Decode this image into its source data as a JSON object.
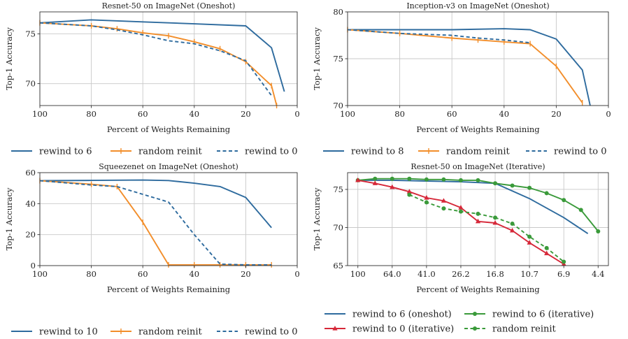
{
  "colors": {
    "blue": "#2e6b9e",
    "orange": "#f28e2b",
    "green": "#3a9a3a",
    "red": "#d62839",
    "grid": "#c8c8c8"
  },
  "chart_data": [
    {
      "type": "line",
      "title": "Resnet-50 on ImageNet (Oneshot)",
      "xlabel": "Percent of Weights Remaining",
      "ylabel": "Top-1 Accuracy",
      "xlim": [
        100,
        0
      ],
      "ylim": [
        67.8,
        77.2
      ],
      "xticks": [
        100,
        80,
        60,
        40,
        20,
        0
      ],
      "yticks": [
        70,
        75
      ],
      "legend": "below",
      "series": [
        {
          "name": "rewind to 6",
          "color": "blue",
          "style": "solid",
          "x": [
            100,
            80,
            60,
            40,
            20,
            10,
            5
          ],
          "y": [
            76.1,
            76.4,
            76.2,
            76.0,
            75.8,
            73.6,
            69.2
          ]
        },
        {
          "name": "random reinit",
          "color": "orange",
          "style": "solid",
          "marker": "tick",
          "x": [
            100,
            80,
            70,
            60,
            50,
            40,
            30,
            20,
            10,
            8
          ],
          "y": [
            76.1,
            75.8,
            75.5,
            75.1,
            74.8,
            74.2,
            73.5,
            72.2,
            69.8,
            67.8
          ]
        },
        {
          "name": "rewind to 0",
          "color": "blue",
          "style": "dashed",
          "x": [
            100,
            80,
            70,
            60,
            50,
            40,
            30,
            20,
            10
          ],
          "y": [
            76.1,
            75.8,
            75.4,
            74.9,
            74.3,
            74.0,
            73.3,
            72.3,
            68.8
          ]
        }
      ]
    },
    {
      "type": "line",
      "title": "Inception-v3 on ImageNet (Oneshot)",
      "xlabel": "Percent of Weights Remaining",
      "ylabel": "Top-1 Accuracy",
      "xlim": [
        100,
        0
      ],
      "ylim": [
        70,
        80
      ],
      "xticks": [
        100,
        80,
        60,
        40,
        20,
        0
      ],
      "yticks": [
        70,
        75,
        80
      ],
      "legend": "below",
      "series": [
        {
          "name": "rewind to 8",
          "color": "blue",
          "style": "solid",
          "x": [
            100,
            80,
            60,
            40,
            30,
            20,
            10,
            7
          ],
          "y": [
            78.1,
            78.1,
            78.1,
            78.2,
            78.1,
            77.1,
            73.8,
            70.0
          ]
        },
        {
          "name": "random reinit",
          "color": "orange",
          "style": "solid",
          "marker": "tick",
          "x": [
            100,
            80,
            60,
            50,
            40,
            30,
            20,
            10
          ],
          "y": [
            78.1,
            77.7,
            77.2,
            77.0,
            76.8,
            76.6,
            74.2,
            70.3
          ]
        },
        {
          "name": "rewind to 0",
          "color": "blue",
          "style": "dashed",
          "x": [
            100,
            80,
            60,
            50,
            40,
            30
          ],
          "y": [
            78.1,
            77.7,
            77.5,
            77.2,
            77.0,
            76.7
          ]
        }
      ]
    },
    {
      "type": "line",
      "title": "Squeezenet on ImageNet (Oneshot)",
      "xlabel": "Percent of Weights Remaining",
      "ylabel": "Top-1 Accuracy",
      "xlim": [
        100,
        0
      ],
      "ylim": [
        0,
        60
      ],
      "xticks": [
        100,
        80,
        60,
        40,
        20,
        0
      ],
      "yticks": [
        0,
        20,
        40,
        60
      ],
      "legend": "below",
      "series": [
        {
          "name": "rewind to 10",
          "color": "blue",
          "style": "solid",
          "x": [
            100,
            80,
            60,
            50,
            40,
            30,
            20,
            10
          ],
          "y": [
            54.8,
            55.0,
            55.2,
            54.9,
            53.2,
            51.0,
            44.0,
            24.5
          ]
        },
        {
          "name": "random reinit",
          "color": "orange",
          "style": "solid",
          "marker": "tick",
          "x": [
            100,
            80,
            70,
            60,
            50,
            40,
            30,
            20,
            10
          ],
          "y": [
            54.8,
            52.5,
            51.0,
            28.0,
            0.5,
            0.5,
            0.5,
            0.5,
            0.5
          ]
        },
        {
          "name": "rewind to 0",
          "color": "blue",
          "style": "dashed",
          "x": [
            100,
            80,
            70,
            60,
            50,
            40,
            30,
            20,
            10
          ],
          "y": [
            54.8,
            52.0,
            51.0,
            46.0,
            41.0,
            20.0,
            1.0,
            0.5,
            0.5
          ]
        }
      ]
    },
    {
      "type": "line",
      "title": "Resnet-50 on ImageNet (Iterative)",
      "xlabel": "Percent of Weights Remaining",
      "ylabel": "Top-1 Accuracy",
      "xcategories": [
        "100",
        "64.0",
        "41.0",
        "26.2",
        "16.8",
        "10.7",
        "6.9",
        "4.4"
      ],
      "xlim": [
        -0.3,
        7.3
      ],
      "ylim": [
        65,
        77.2
      ],
      "yticks": [
        65,
        70,
        75
      ],
      "legend": "below",
      "series": [
        {
          "name": "rewind to 6 (oneshot)",
          "color": "blue",
          "style": "solid",
          "x": [
            0,
            1,
            2,
            3,
            4,
            5,
            6,
            6.7
          ],
          "y": [
            76.2,
            76.2,
            76.1,
            76.0,
            75.8,
            73.8,
            71.3,
            69.2
          ]
        },
        {
          "name": "rewind to 6 (iterative)",
          "color": "green",
          "style": "solid",
          "marker": "dot",
          "x": [
            0,
            0.5,
            1,
            1.5,
            2,
            2.5,
            3,
            3.5,
            4,
            4.5,
            5,
            5.5,
            6,
            6.5,
            7
          ],
          "y": [
            76.2,
            76.4,
            76.4,
            76.4,
            76.3,
            76.3,
            76.2,
            76.2,
            75.8,
            75.5,
            75.2,
            74.5,
            73.6,
            72.3,
            69.5
          ]
        },
        {
          "name": "rewind to 0 (iterative)",
          "color": "red",
          "style": "solid",
          "marker": "triangle",
          "x": [
            0,
            0.5,
            1,
            1.5,
            2,
            2.5,
            3,
            3.5,
            4,
            4.5,
            5,
            5.5,
            6
          ],
          "y": [
            76.2,
            75.8,
            75.3,
            74.7,
            73.9,
            73.5,
            72.6,
            70.8,
            70.6,
            69.6,
            68.0,
            66.6,
            65.2
          ]
        },
        {
          "name": "random reinit",
          "color": "green",
          "style": "dashed",
          "marker": "dot",
          "x": [
            1.5,
            2,
            2.5,
            3,
            3.5,
            4,
            4.5,
            5,
            5.5,
            6
          ],
          "y": [
            74.3,
            73.3,
            72.5,
            72.1,
            71.8,
            71.3,
            70.5,
            68.8,
            67.3,
            65.5
          ]
        }
      ]
    }
  ],
  "legends": [
    [
      {
        "label": "rewind to 6",
        "color": "blue",
        "style": "solid"
      },
      {
        "label": "random reinit",
        "color": "orange",
        "style": "solid",
        "marker": "tick"
      },
      {
        "label": "rewind to 0",
        "color": "blue",
        "style": "dashed"
      }
    ],
    [
      {
        "label": "rewind to 8",
        "color": "blue",
        "style": "solid"
      },
      {
        "label": "random reinit",
        "color": "orange",
        "style": "solid",
        "marker": "tick"
      },
      {
        "label": "rewind to 0",
        "color": "blue",
        "style": "dashed"
      }
    ],
    [
      {
        "label": "rewind to 10",
        "color": "blue",
        "style": "solid"
      },
      {
        "label": "random reinit",
        "color": "orange",
        "style": "solid",
        "marker": "tick"
      },
      {
        "label": "rewind to 0",
        "color": "blue",
        "style": "dashed"
      }
    ],
    [
      {
        "label": "rewind to 6 (oneshot)",
        "color": "blue",
        "style": "solid"
      },
      {
        "label": "rewind to 6 (iterative)",
        "color": "green",
        "style": "solid",
        "marker": "dot"
      },
      {
        "label": "rewind to 0 (iterative)",
        "color": "red",
        "style": "solid",
        "marker": "triangle"
      },
      {
        "label": "random reinit",
        "color": "green",
        "style": "dashed",
        "marker": "dot"
      }
    ]
  ]
}
